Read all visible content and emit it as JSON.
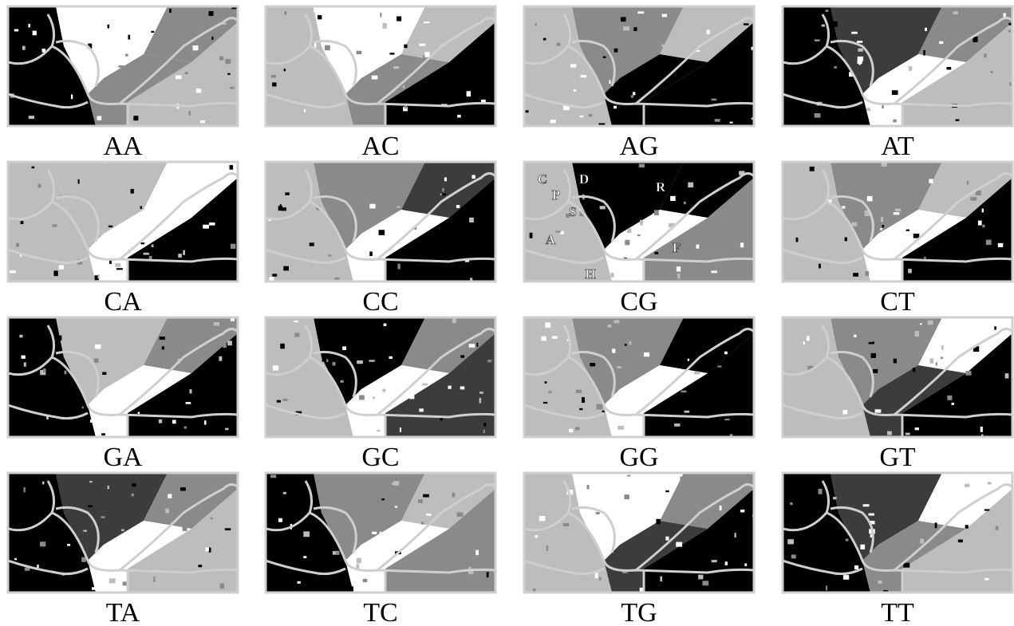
{
  "panels": [
    {
      "label": "AA"
    },
    {
      "label": "AC"
    },
    {
      "label": "AG"
    },
    {
      "label": "AT"
    },
    {
      "label": "CA"
    },
    {
      "label": "CC"
    },
    {
      "label": "CG",
      "regions": [
        "C",
        "P",
        "D",
        "R",
        "S",
        "A",
        "F",
        "H"
      ]
    },
    {
      "label": "CT"
    },
    {
      "label": "GA"
    },
    {
      "label": "GC"
    },
    {
      "label": "GG"
    },
    {
      "label": "GT"
    },
    {
      "label": "TA"
    },
    {
      "label": "TC"
    },
    {
      "label": "TG"
    },
    {
      "label": "TT"
    }
  ]
}
